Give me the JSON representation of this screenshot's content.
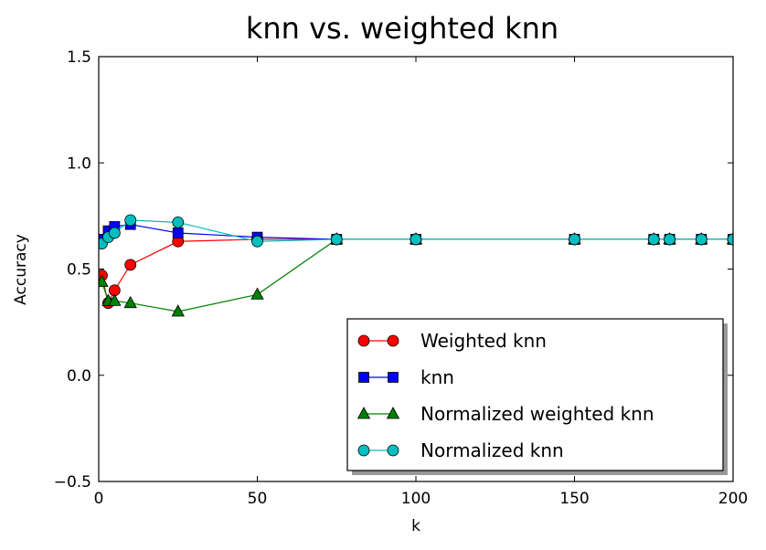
{
  "chart_data": {
    "type": "line",
    "title": "knn vs. weighted knn",
    "xlabel": "k",
    "ylabel": "Accuracy",
    "xlim": [
      0,
      200
    ],
    "ylim": [
      -0.5,
      1.5
    ],
    "xticks": [
      "0",
      "50",
      "100",
      "150",
      "200"
    ],
    "yticks": [
      "−0.5",
      "0.0",
      "0.5",
      "1.0",
      "1.5"
    ],
    "grid": false,
    "legend_position": "lower-right",
    "series": [
      {
        "name": "Weighted knn",
        "color": "#ff0000",
        "marker": "circle",
        "x": [
          1,
          3,
          5,
          10,
          25,
          50,
          75,
          100,
          150,
          175,
          180,
          190,
          200
        ],
        "y": [
          0.47,
          0.34,
          0.4,
          0.52,
          0.63,
          0.64,
          0.64,
          0.64,
          0.64,
          0.64,
          0.64,
          0.64,
          0.64
        ]
      },
      {
        "name": "knn",
        "color": "#0000ff",
        "marker": "square",
        "x": [
          1,
          3,
          5,
          10,
          25,
          50,
          75,
          100,
          150,
          175,
          180,
          190,
          200
        ],
        "y": [
          0.64,
          0.68,
          0.7,
          0.71,
          0.67,
          0.65,
          0.64,
          0.64,
          0.64,
          0.64,
          0.64,
          0.64,
          0.64
        ]
      },
      {
        "name": "Normalized weighted knn",
        "color": "#007f00",
        "marker": "triangle",
        "x": [
          1,
          3,
          5,
          10,
          25,
          50,
          75,
          100,
          150,
          175,
          180,
          190,
          200
        ],
        "y": [
          0.44,
          0.35,
          0.35,
          0.34,
          0.3,
          0.38,
          0.64,
          0.64,
          0.64,
          0.64,
          0.64,
          0.64,
          0.64
        ]
      },
      {
        "name": "Normalized knn",
        "color": "#00bfbf",
        "marker": "circle",
        "x": [
          1,
          3,
          5,
          10,
          25,
          50,
          75,
          100,
          150,
          175,
          180,
          190,
          200
        ],
        "y": [
          0.62,
          0.65,
          0.67,
          0.73,
          0.72,
          0.63,
          0.64,
          0.64,
          0.64,
          0.64,
          0.64,
          0.64,
          0.64
        ]
      }
    ]
  }
}
